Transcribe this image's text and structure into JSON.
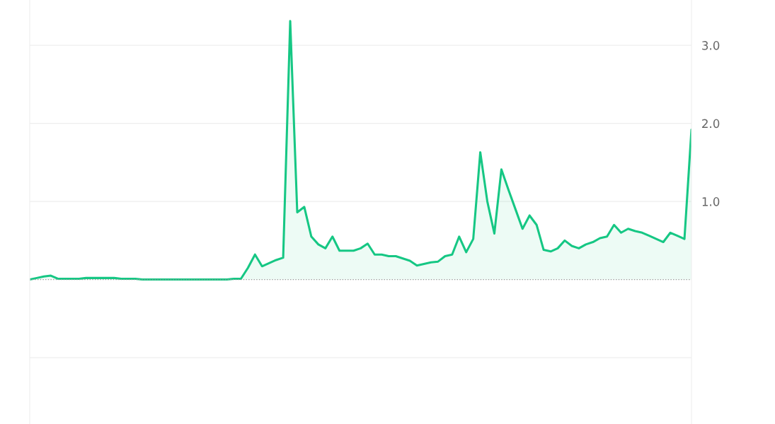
{
  "chart_data": {
    "type": "area",
    "categories": [
      null,
      null,
      null,
      null,
      null,
      null,
      null,
      null,
      null,
      null,
      null,
      null,
      null,
      null,
      null,
      null,
      null,
      null,
      null,
      null,
      null,
      null,
      null,
      null,
      null,
      null,
      null,
      null,
      null,
      null,
      null,
      null,
      null,
      null,
      null,
      null,
      null,
      null,
      null,
      null,
      null,
      null,
      null,
      null,
      null,
      null,
      null,
      null,
      null,
      null,
      null,
      null,
      null,
      null,
      null,
      null,
      null,
      null,
      null,
      null,
      null,
      null,
      null,
      null,
      null,
      null,
      null,
      null,
      null,
      null,
      null,
      null,
      null,
      null,
      null,
      null,
      null,
      null,
      null,
      null,
      null,
      null,
      null,
      null,
      null,
      null,
      null,
      null,
      null,
      null,
      null,
      null,
      null,
      null,
      null
    ],
    "series": [
      {
        "color": "#16c784",
        "values": [
          0.0,
          0.02,
          0.04,
          0.05,
          0.01,
          0.01,
          0.01,
          0.01,
          0.02,
          0.02,
          0.02,
          0.02,
          0.02,
          0.01,
          0.01,
          0.01,
          0.0,
          0.0,
          0.0,
          0.0,
          0.0,
          0.0,
          0.0,
          0.0,
          0.0,
          0.0,
          0.0,
          0.0,
          0.0,
          0.01,
          0.01,
          0.15,
          0.32,
          0.17,
          0.21,
          0.25,
          0.28,
          3.31,
          0.86,
          0.93,
          0.55,
          0.45,
          0.4,
          0.55,
          0.37,
          0.37,
          0.37,
          0.4,
          0.46,
          0.32,
          0.32,
          0.3,
          0.3,
          0.27,
          0.24,
          0.18,
          0.2,
          0.22,
          0.23,
          0.3,
          0.32,
          0.55,
          0.35,
          0.52,
          1.63,
          1.0,
          0.59,
          1.41,
          1.15,
          0.9,
          0.65,
          0.82,
          0.7,
          0.38,
          0.36,
          0.4,
          0.5,
          0.43,
          0.4,
          0.45,
          0.48,
          0.53,
          0.55,
          0.7,
          0.6,
          0.65,
          0.62,
          0.6,
          0.56,
          0.52,
          0.48,
          0.6,
          0.56,
          0.52,
          1.92
        ]
      }
    ],
    "ylim": [
      -1.85,
      3.58
    ],
    "yticks": [
      {
        "value": -1,
        "label": null
      },
      {
        "value": 1,
        "label": "1.0"
      },
      {
        "value": 2,
        "label": "2.0"
      },
      {
        "value": 3,
        "label": "3.0"
      }
    ],
    "tick_labels": "y",
    "grid": "y",
    "ref_lines": [
      {
        "axis": "y",
        "value": 0,
        "color": "#999999",
        "line_style": "dotted"
      }
    ]
  }
}
